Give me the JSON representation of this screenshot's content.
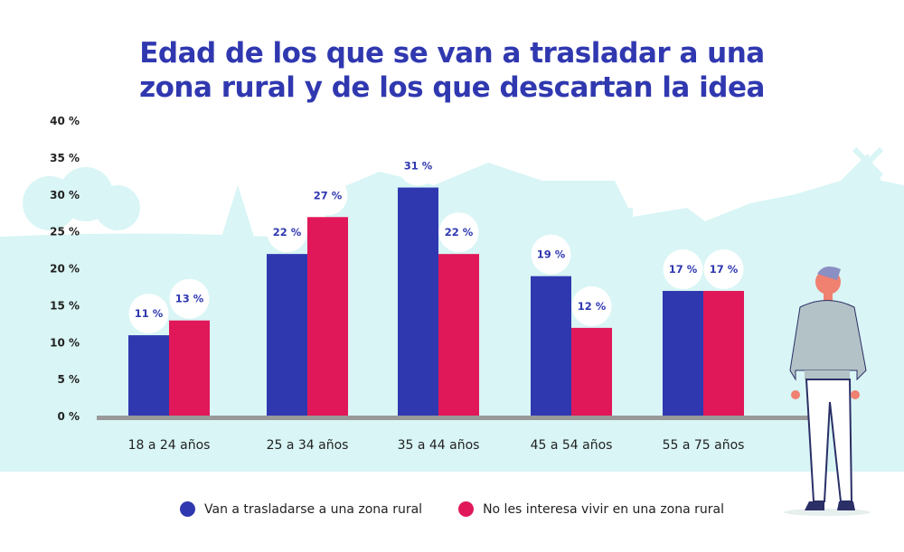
{
  "chart_data": {
    "type": "bar",
    "title": "Edad de los que se van a trasladar a una zona rural y de los que descartan la idea",
    "title_lines": [
      "Edad de los que se van a trasladar a una",
      "zona rural y de los que descartan la idea"
    ],
    "categories": [
      "18 a 24 años",
      "25 a 34 años",
      "35 a 44 años",
      "45 a 54 años",
      "55 a 75 años"
    ],
    "series": [
      {
        "name": "Van a trasladarse a una zona rural",
        "color": "#3038b0",
        "values": [
          11,
          22,
          31,
          19,
          17
        ]
      },
      {
        "name": "No les interesa vivir en una zona rural",
        "color": "#e0185a",
        "values": [
          13,
          27,
          22,
          12,
          17
        ]
      }
    ],
    "data_labels": [
      [
        "11 %",
        "22 %",
        "31 %",
        "19 %",
        "17 %"
      ],
      [
        "13 %",
        "27 %",
        "22 %",
        "12 %",
        "17 %"
      ]
    ],
    "yticks": [
      "0 %",
      "5 %",
      "10 %",
      "15 %",
      "20 %",
      "25 %",
      "30 %",
      "35 %",
      "40 %"
    ],
    "ylim": [
      0,
      40
    ],
    "xlabel": "",
    "ylabel": "",
    "grid": false,
    "legend_position": "bottom",
    "colors": {
      "title": "#3038b0",
      "background_band": "#d9f5f5",
      "axis": "#999999"
    }
  }
}
